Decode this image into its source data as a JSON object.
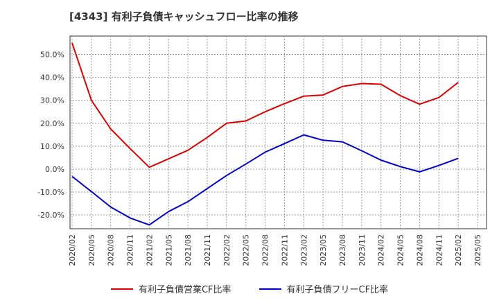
{
  "title": "[4343]  有利子負債キャッシュフロー比率の推移",
  "chart_data": {
    "type": "line",
    "title": "[4343]  有利子負債キャッシュフロー比率の推移",
    "x": [
      "2020/02",
      "2020/05",
      "2020/08",
      "2020/11",
      "2021/02",
      "2021/05",
      "2021/08",
      "2021/11",
      "2022/02",
      "2022/05",
      "2022/08",
      "2022/11",
      "2023/02",
      "2023/05",
      "2023/08",
      "2023/11",
      "2024/02",
      "2024/05",
      "2024/08",
      "2024/11",
      "2025/02"
    ],
    "x_ticks": [
      "2020/02",
      "2020/05",
      "2020/08",
      "2020/11",
      "2021/02",
      "2021/05",
      "2021/08",
      "2021/11",
      "2022/02",
      "2022/05",
      "2022/08",
      "2022/11",
      "2023/02",
      "2023/05",
      "2023/08",
      "2023/11",
      "2024/02",
      "2024/05",
      "2024/08",
      "2024/11",
      "2025/02",
      "2025/05"
    ],
    "y_ticks": [
      "50.0%",
      "40.0%",
      "30.0%",
      "20.0%",
      "10.0%",
      "0.0%",
      "-10.0%",
      "-20.0%"
    ],
    "ylim": [
      -26,
      58
    ],
    "grid": true,
    "legend_position": "bottom",
    "series": [
      {
        "name": "有利子負債営業CF比率",
        "color": "#dd0000",
        "values": [
          55.0,
          30.0,
          17.5,
          9.0,
          0.8,
          4.5,
          8.2,
          13.8,
          20.0,
          21.0,
          25.0,
          28.5,
          31.8,
          32.3,
          36.0,
          37.3,
          37.0,
          32.0,
          28.3,
          31.2,
          37.8
        ]
      },
      {
        "name": "有利子負債フリーCF比率",
        "color": "#0000cc",
        "values": [
          -3.2,
          -9.8,
          -16.5,
          -21.3,
          -24.3,
          -18.5,
          -14.2,
          -8.5,
          -2.8,
          2.2,
          7.4,
          11.1,
          14.9,
          12.6,
          11.9,
          8.0,
          3.9,
          1.1,
          -1.2,
          1.6,
          4.7
        ]
      }
    ]
  }
}
